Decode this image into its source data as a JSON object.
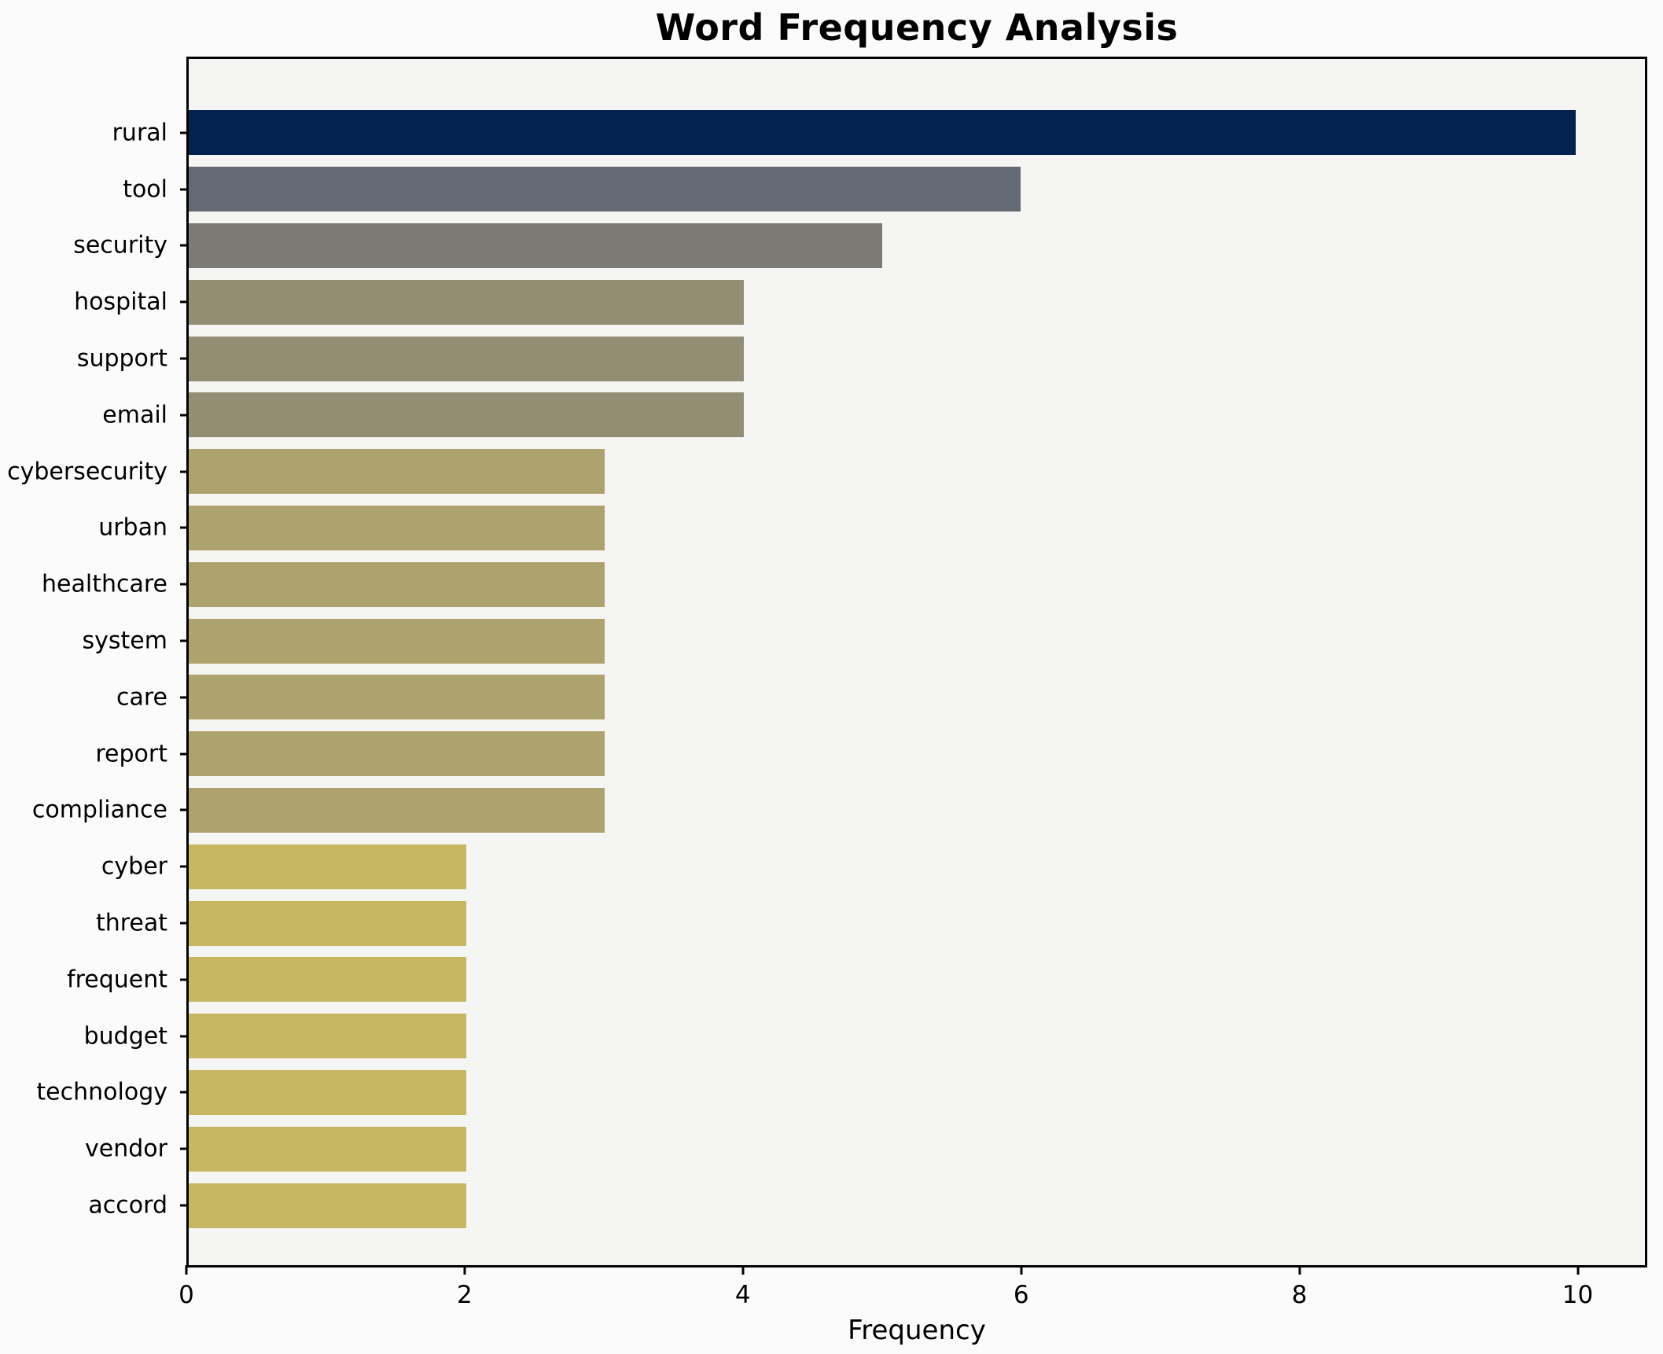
{
  "chart_data": {
    "type": "bar",
    "orientation": "horizontal",
    "title": "Word Frequency Analysis",
    "xlabel": "Frequency",
    "ylabel": "",
    "categories": [
      "rural",
      "tool",
      "security",
      "hospital",
      "support",
      "email",
      "cybersecurity",
      "urban",
      "healthcare",
      "system",
      "care",
      "report",
      "compliance",
      "cyber",
      "threat",
      "frequent",
      "budget",
      "technology",
      "vendor",
      "accord"
    ],
    "values": [
      10,
      6,
      5,
      4,
      4,
      4,
      3,
      3,
      3,
      3,
      3,
      3,
      3,
      2,
      2,
      2,
      2,
      2,
      2,
      2
    ],
    "bar_colors": [
      "#03234e",
      "#646a74",
      "#7b7a75",
      "#938d74",
      "#938d74",
      "#938d74",
      "#aea26e",
      "#aea26e",
      "#aea26e",
      "#aea26e",
      "#aea26e",
      "#aea26e",
      "#aea26e",
      "#c7b763",
      "#c7b763",
      "#c7b763",
      "#c7b763",
      "#c7b763",
      "#c7b763",
      "#c7b763"
    ],
    "xticks": [
      0,
      2,
      4,
      6,
      8,
      10
    ],
    "xlim": [
      0,
      10.5
    ],
    "grid": false,
    "legend": null,
    "bar_height_fraction": 0.79,
    "plot_bg": "#f5f5f4",
    "figure_bg": "#fbfbfb",
    "spine_color": "#000000"
  }
}
